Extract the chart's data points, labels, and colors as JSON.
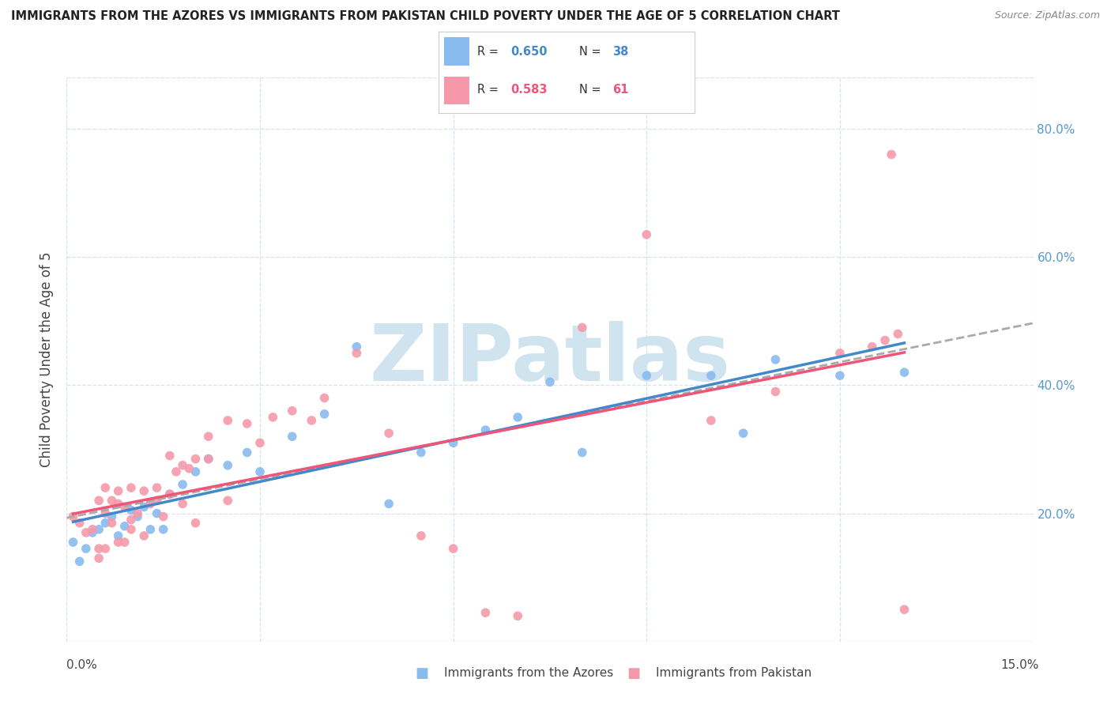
{
  "title": "IMMIGRANTS FROM THE AZORES VS IMMIGRANTS FROM PAKISTAN CHILD POVERTY UNDER THE AGE OF 5 CORRELATION CHART",
  "source": "Source: ZipAtlas.com",
  "ylabel": "Child Poverty Under the Age of 5",
  "yticks_labels": [
    "20.0%",
    "40.0%",
    "60.0%",
    "80.0%"
  ],
  "ytick_vals": [
    0.2,
    0.4,
    0.6,
    0.8
  ],
  "xtick_vals": [
    0.0,
    0.03,
    0.06,
    0.09,
    0.12,
    0.15
  ],
  "xlim": [
    0.0,
    0.15
  ],
  "ylim": [
    0.0,
    0.88
  ],
  "legend_label1": "Immigrants from the Azores",
  "legend_label2": "Immigrants from Pakistan",
  "R1": 0.65,
  "N1": 38,
  "R2": 0.583,
  "N2": 61,
  "color_azores": "#88bbee",
  "color_pakistan": "#f599aa",
  "trend_color_azores": "#4488cc",
  "trend_color_pakistan": "#ee5577",
  "trend_color_dashed": "#aaaaaa",
  "azores_x": [
    0.001,
    0.002,
    0.003,
    0.004,
    0.005,
    0.006,
    0.007,
    0.008,
    0.009,
    0.01,
    0.011,
    0.012,
    0.013,
    0.014,
    0.015,
    0.016,
    0.018,
    0.02,
    0.022,
    0.025,
    0.028,
    0.03,
    0.035,
    0.04,
    0.045,
    0.05,
    0.055,
    0.06,
    0.065,
    0.07,
    0.075,
    0.08,
    0.09,
    0.1,
    0.105,
    0.11,
    0.12,
    0.13
  ],
  "azores_y": [
    0.155,
    0.125,
    0.145,
    0.17,
    0.175,
    0.185,
    0.195,
    0.165,
    0.18,
    0.205,
    0.195,
    0.21,
    0.175,
    0.2,
    0.175,
    0.23,
    0.245,
    0.265,
    0.285,
    0.275,
    0.295,
    0.265,
    0.32,
    0.355,
    0.46,
    0.215,
    0.295,
    0.31,
    0.33,
    0.35,
    0.405,
    0.295,
    0.415,
    0.415,
    0.325,
    0.44,
    0.415,
    0.42
  ],
  "pakistan_x": [
    0.001,
    0.002,
    0.003,
    0.004,
    0.005,
    0.005,
    0.006,
    0.006,
    0.007,
    0.007,
    0.008,
    0.008,
    0.009,
    0.009,
    0.01,
    0.01,
    0.011,
    0.012,
    0.013,
    0.014,
    0.015,
    0.016,
    0.017,
    0.018,
    0.019,
    0.02,
    0.022,
    0.025,
    0.028,
    0.03,
    0.032,
    0.035,
    0.038,
    0.04,
    0.045,
    0.05,
    0.055,
    0.06,
    0.065,
    0.07,
    0.08,
    0.09,
    0.1,
    0.11,
    0.12,
    0.125,
    0.127,
    0.128,
    0.129,
    0.13,
    0.005,
    0.006,
    0.008,
    0.01,
    0.012,
    0.014,
    0.016,
    0.018,
    0.02,
    0.022,
    0.025
  ],
  "pakistan_y": [
    0.195,
    0.185,
    0.17,
    0.175,
    0.145,
    0.22,
    0.2,
    0.24,
    0.185,
    0.22,
    0.215,
    0.235,
    0.155,
    0.21,
    0.19,
    0.24,
    0.2,
    0.235,
    0.215,
    0.24,
    0.195,
    0.29,
    0.265,
    0.275,
    0.27,
    0.285,
    0.32,
    0.345,
    0.34,
    0.31,
    0.35,
    0.36,
    0.345,
    0.38,
    0.45,
    0.325,
    0.165,
    0.145,
    0.045,
    0.04,
    0.49,
    0.635,
    0.345,
    0.39,
    0.45,
    0.46,
    0.47,
    0.76,
    0.48,
    0.05,
    0.13,
    0.145,
    0.155,
    0.175,
    0.165,
    0.22,
    0.23,
    0.215,
    0.185,
    0.285,
    0.22
  ],
  "background_color": "#ffffff",
  "watermark": "ZIPatlas",
  "watermark_color": "#d0e4f0"
}
